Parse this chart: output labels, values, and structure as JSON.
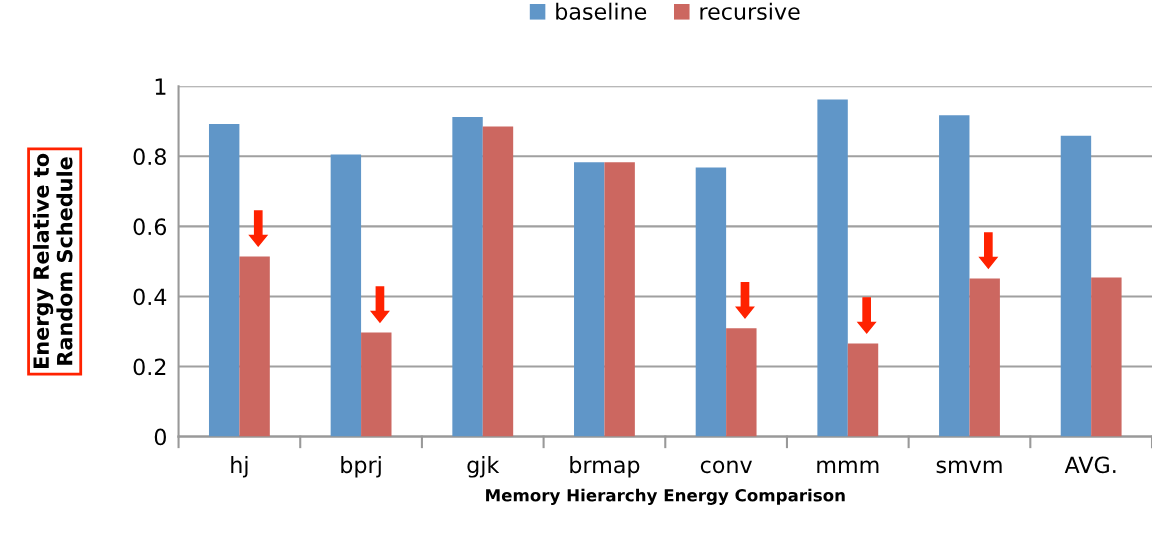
{
  "chart_data": {
    "type": "bar",
    "xlabel": "Memory Hierarchy Energy Comparison",
    "ylabel": "Energy Relative to\nRandom Schedule",
    "categories": [
      "hj",
      "bprj",
      "gjk",
      "brmap",
      "conv",
      "mmm",
      "smvm",
      "AVG."
    ],
    "series": [
      {
        "name": "baseline",
        "color": "#6096c8",
        "values": [
          0.892,
          0.805,
          0.912,
          0.783,
          0.768,
          0.962,
          0.917,
          0.859
        ]
      },
      {
        "name": "recursive",
        "color": "#cc6760",
        "values": [
          0.514,
          0.297,
          0.885,
          0.783,
          0.309,
          0.266,
          0.451,
          0.454
        ]
      }
    ],
    "ylim": [
      0,
      1
    ],
    "yticks": [
      0,
      0.2,
      0.4,
      0.6,
      0.8,
      1
    ],
    "grid": "y",
    "legend": "top"
  }
}
